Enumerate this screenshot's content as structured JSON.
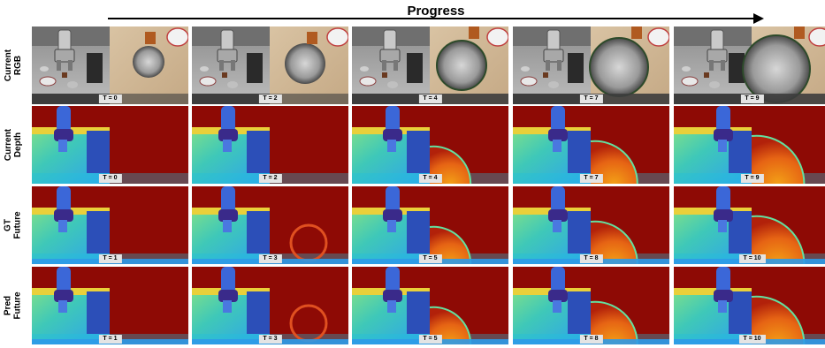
{
  "header": {
    "progress_label": "Progress"
  },
  "row_labels": [
    "Current\nRGB",
    "Current\nDepth",
    "GT\nFuture",
    "Pred\nFuture"
  ],
  "rows": [
    {
      "kind": "rgb",
      "labels": [
        "T = 0",
        "T = 2",
        "T = 4",
        "T = 7",
        "T = 9"
      ]
    },
    {
      "kind": "depth",
      "labels": [
        "T = 0",
        "T = 2",
        "T = 4",
        "T = 7",
        "T = 9"
      ]
    },
    {
      "kind": "depth",
      "labels": [
        "T = 1",
        "T = 3",
        "T = 5",
        "T = 8",
        "T = 10"
      ]
    },
    {
      "kind": "depth",
      "labels": [
        "T = 1",
        "T = 3",
        "T = 5",
        "T = 8",
        "T = 10"
      ]
    }
  ],
  "colors": {
    "depth_far": "#8e0a05",
    "depth_mid": "#e06a10",
    "depth_near": "#1fbfe0",
    "depth_close": "#3a2a8a"
  }
}
